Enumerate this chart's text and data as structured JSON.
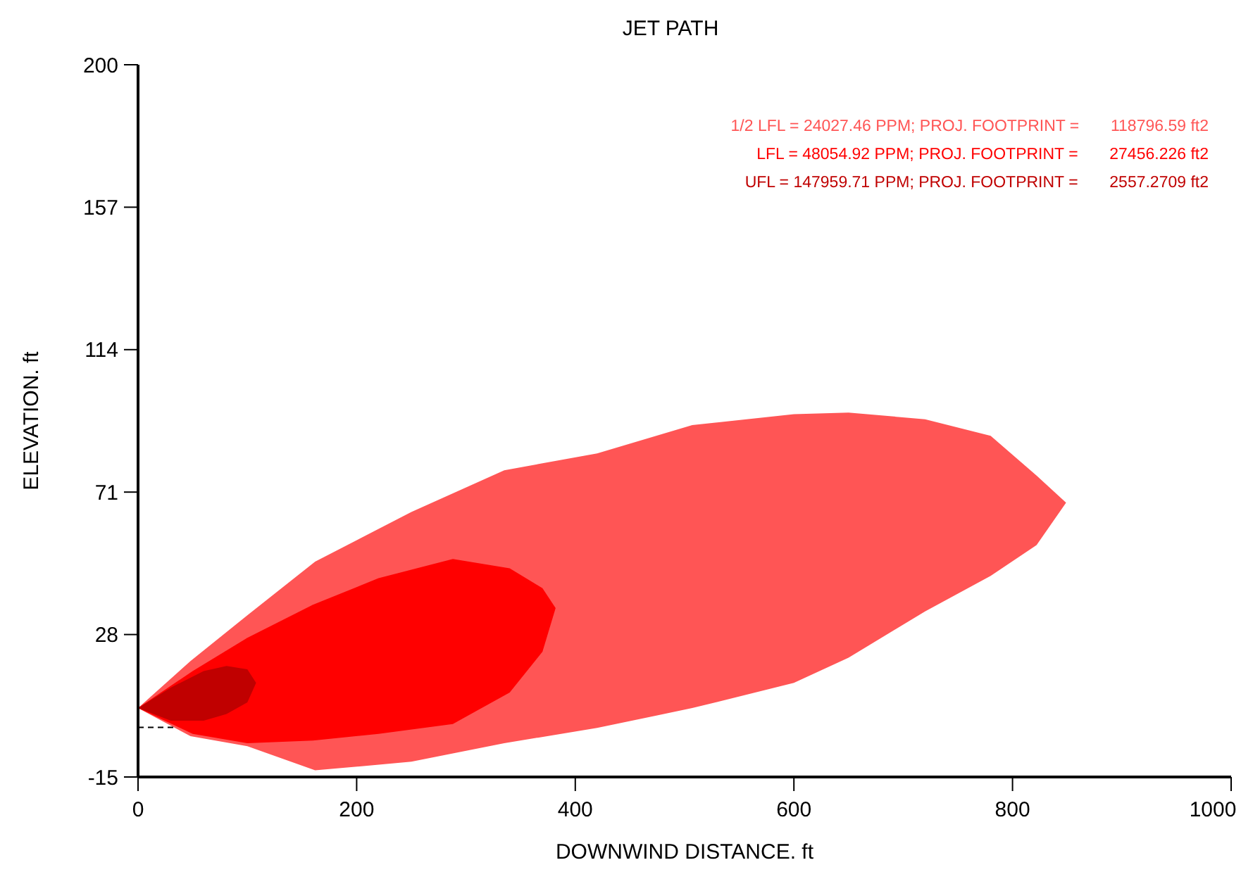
{
  "chart_data": {
    "type": "area",
    "title": "JET PATH",
    "xlabel": "DOWNWIND DISTANCE. ft",
    "ylabel": "ELEVATION. ft",
    "xlim": [
      0,
      1000
    ],
    "xticks": [
      0,
      200,
      400,
      600,
      800,
      1000
    ],
    "ylim": [
      -15,
      200
    ],
    "yticks": [
      -15,
      28,
      71,
      114,
      157,
      200
    ],
    "series": [
      {
        "color": "#ff5555",
        "x": [
          0,
          48,
          100,
          162,
          250,
          335,
          420,
          507,
          600,
          650,
          720,
          780,
          822,
          849,
          822,
          780,
          720,
          650,
          600,
          507,
          420,
          335,
          250,
          162,
          100,
          48
        ],
        "values": [
          5.8,
          20,
          33.8,
          50,
          65,
          77.6,
          82.7,
          91.2,
          94.5,
          95,
          93,
          88,
          76,
          67.8,
          55,
          45.7,
          35,
          21,
          13.4,
          5.8,
          -0.2,
          -4.8,
          -10.4,
          -13,
          -5.7,
          -2.7
        ]
      },
      {
        "color": "#ff0000",
        "x": [
          0,
          50,
          100,
          160,
          220,
          288,
          340,
          370,
          382,
          370,
          340,
          288,
          220,
          160,
          100,
          50
        ],
        "values": [
          5.8,
          17,
          27,
          37,
          45,
          50.8,
          48,
          42,
          36,
          22.8,
          10.5,
          1,
          -2,
          -4,
          -4.8,
          -2
        ]
      },
      {
        "color": "#c00000",
        "x": [
          0,
          30,
          60,
          81,
          100,
          108,
          100,
          81,
          60,
          30
        ],
        "values": [
          5.8,
          12,
          17,
          18.5,
          17.5,
          13.4,
          7.5,
          4,
          2,
          2
        ]
      },
      {
        "type": "line",
        "color": "#000000",
        "line_style": "dashed",
        "x": [
          0,
          33
        ],
        "values": [
          0,
          0
        ]
      }
    ],
    "annotations": [
      "1/2 LFL = 24027.46 PPM; PROJ. FOOTPRINT =       118796.59 ft2",
      "LFL = 48054.92 PPM; PROJ. FOOTPRINT =       27456.226 ft2",
      "UFL = 147959.71 PPM; PROJ. FOOTPRINT =       2557.2709 ft2"
    ]
  }
}
